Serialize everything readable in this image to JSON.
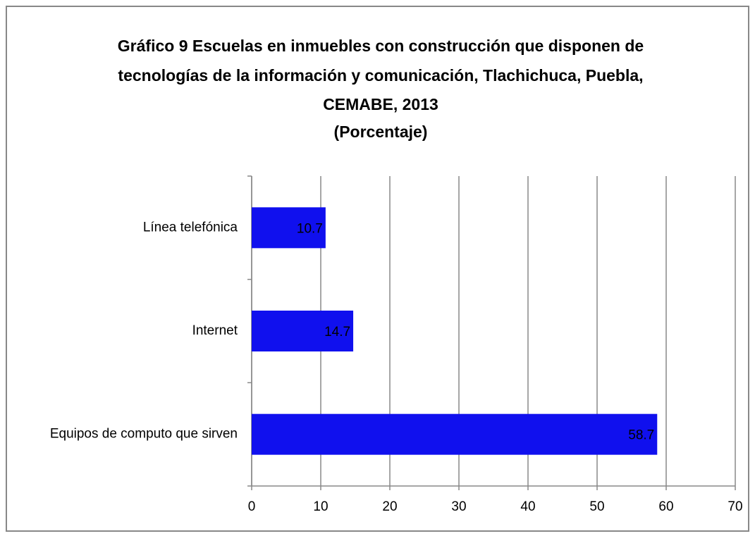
{
  "chart_data": {
    "type": "barh",
    "title": [
      "Gráfico 9 Escuelas en inmuebles con construcción que disponen de",
      "tecnologías de la información y comunicación, Tlachichuca, Puebla,",
      "CEMABE, 2013"
    ],
    "subtitle": "(Porcentaje)",
    "categories": [
      "Línea telefónica",
      "Internet",
      "Equipos de computo que sirven"
    ],
    "values": [
      10.7,
      14.7,
      58.7
    ],
    "color": "#1010ee",
    "xlim": [
      0,
      70
    ],
    "xticks": [
      0,
      10,
      20,
      30,
      40,
      50,
      60,
      70
    ],
    "grid": true
  }
}
